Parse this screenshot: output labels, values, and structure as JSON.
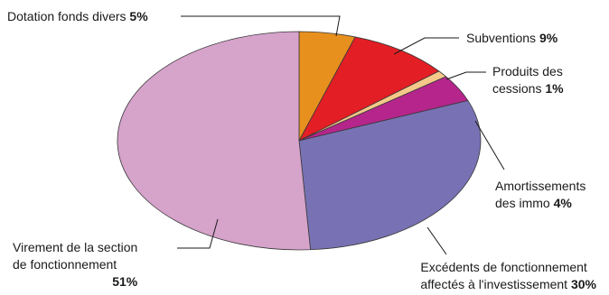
{
  "chart_data": {
    "type": "pie",
    "slices": [
      {
        "key": "dotation",
        "name_lines": [
          "Dotation fonds divers"
        ],
        "value": 5,
        "pct_label": "5%",
        "color": "#e8901e"
      },
      {
        "key": "subventions",
        "name_lines": [
          "Subventions"
        ],
        "value": 9,
        "pct_label": "9%",
        "color": "#e31e24"
      },
      {
        "key": "cessions",
        "name_lines": [
          "Produits des",
          "cessions"
        ],
        "value": 1,
        "pct_label": "1%",
        "color": "#f6c98a"
      },
      {
        "key": "amortissements",
        "name_lines": [
          "Amortissements",
          "des immo"
        ],
        "value": 4,
        "pct_label": "4%",
        "color": "#b5258c"
      },
      {
        "key": "excedents",
        "name_lines": [
          "Excédents de fonctionnement",
          "affectés à l'investissement"
        ],
        "value": 30,
        "pct_label": "30%",
        "color": "#7872b4"
      },
      {
        "key": "virement",
        "name_lines": [
          "Virement de la section",
          "de fonctionnement"
        ],
        "value": 51,
        "pct_label": "51%",
        "color": "#d6a3cb"
      }
    ]
  }
}
